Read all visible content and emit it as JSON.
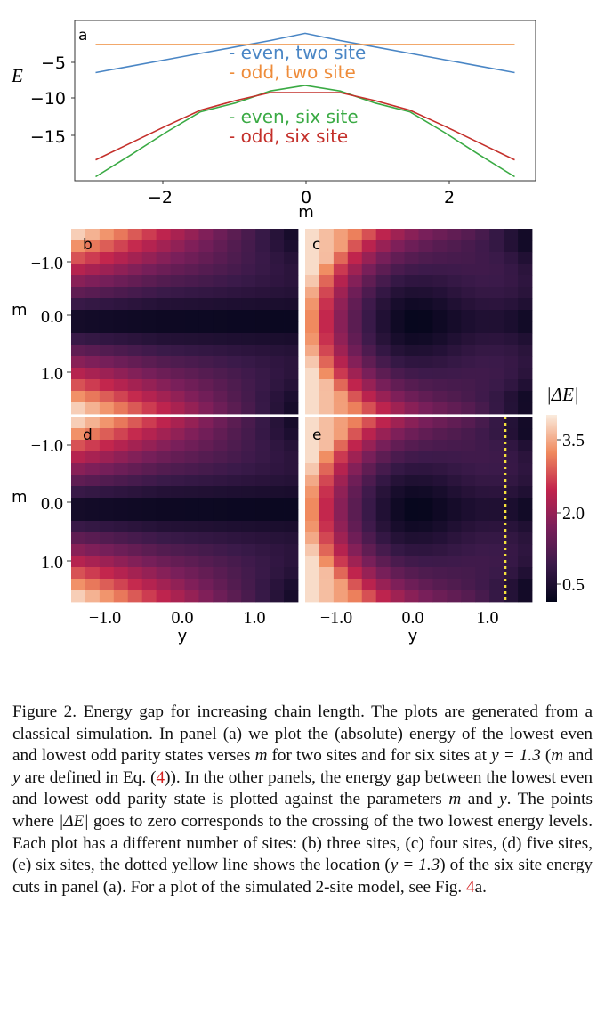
{
  "panel_a": {
    "label": "a",
    "ylabel": "E",
    "xlabel": "m",
    "legend": [
      {
        "text": "- even, two site",
        "color": "#4a86c5"
      },
      {
        "text": "- odd, two site",
        "color": "#ee8c3a"
      },
      {
        "text": "- even, six site",
        "color": "#3aaa44"
      },
      {
        "text": "- odd, six site",
        "color": "#c4302b"
      }
    ],
    "yticks": [
      "−5",
      "−10",
      "−15"
    ],
    "xticks": [
      "−2",
      "0",
      "2"
    ]
  },
  "heatmaps": {
    "labels": [
      "b",
      "c",
      "d",
      "e"
    ],
    "ylabel": "m",
    "xlabel": "y",
    "yticks": [
      "−1.0",
      "0.0",
      "1.0"
    ],
    "xticks": [
      "−1.0",
      "0.0",
      "1.0"
    ]
  },
  "colorbar": {
    "label": "|ΔE|",
    "ticks": [
      "3.5",
      "2.0",
      "0.5"
    ]
  },
  "chart_data": [
    {
      "type": "line",
      "panel": "a",
      "xlabel": "m",
      "ylabel": "E",
      "xlim": [
        -3.3,
        3.3
      ],
      "ylim": [
        -20,
        0
      ],
      "grid": false,
      "legend_placement": "center",
      "x": [
        -3.0,
        -2.5,
        -2.0,
        -1.5,
        -1.0,
        -0.5,
        0.0,
        0.5,
        1.0,
        1.5,
        2.0,
        2.5,
        3.0
      ],
      "series": [
        {
          "name": "even, two site",
          "color": "#4a86c5",
          "values": [
            -6.5,
            -5.7,
            -4.9,
            -4.1,
            -3.3,
            -2.5,
            -1.6,
            -2.5,
            -3.3,
            -4.1,
            -4.9,
            -5.7,
            -6.5
          ]
        },
        {
          "name": "odd, two site",
          "color": "#ee8c3a",
          "values": [
            -3.0,
            -3.0,
            -3.0,
            -3.0,
            -3.0,
            -3.0,
            -3.0,
            -3.0,
            -3.0,
            -3.0,
            -3.0,
            -3.0,
            -3.0
          ]
        },
        {
          "name": "even, six site",
          "color": "#3aaa44",
          "values": [
            -19.5,
            -16.8,
            -14.0,
            -11.4,
            -10.3,
            -8.8,
            -8.1,
            -8.8,
            -10.3,
            -11.4,
            -14.0,
            -16.8,
            -19.5
          ]
        },
        {
          "name": "odd, six site",
          "color": "#c4302b",
          "values": [
            -17.4,
            -15.3,
            -13.2,
            -11.2,
            -10.0,
            -9.0,
            -9.0,
            -9.0,
            -10.0,
            -11.2,
            -13.2,
            -15.3,
            -17.4
          ]
        }
      ]
    },
    {
      "type": "heatmap",
      "panels": [
        "b",
        "c",
        "d",
        "e"
      ],
      "xlabel": "y",
      "ylabel": "m",
      "xlim": [
        -1.5,
        1.5
      ],
      "ylim": [
        -1.5,
        1.5
      ],
      "color_label": "|ΔE|",
      "color_ticks": [
        3.5,
        2.0,
        0.5
      ],
      "marker_line": {
        "panel": "e",
        "y": 1.3,
        "color": "#f5e13c",
        "style": "dotted"
      }
    }
  ],
  "caption": {
    "p1": "Figure 2. Energy gap for increasing chain length. The plots are generated from a classical simulation. In panel (a) we plot the (absolute) energy of the lowest even and lowest odd parity states verses ",
    "m1": "m",
    "p2": " for two sites and for six sites at ",
    "eq1": "y = 1.3",
    "p3": " (",
    "m2": "m",
    "p4": " and ",
    "y1": "y",
    "p5": " are defined in Eq. (",
    "ref1": "4",
    "p6": ")). In the other panels, the energy gap between the lowest even and lowest odd parity state is plotted against the parameters ",
    "m3": "m",
    "p7": " and ",
    "y2": "y",
    "p8": ". The points where ",
    "de": "|ΔE|",
    "p9": " goes to zero corresponds to the crossing of the two lowest energy levels. Each plot has a different number of sites: (b) three sites, (c) four sites, (d) five sites, (e) six sites, the dotted yellow line shows the location (",
    "eq2": "y = 1.3",
    "p10": ") of the six site energy cuts in panel (a). For a plot of the simulated 2-site model, see Fig. ",
    "ref2": "4",
    "p11": "a."
  }
}
